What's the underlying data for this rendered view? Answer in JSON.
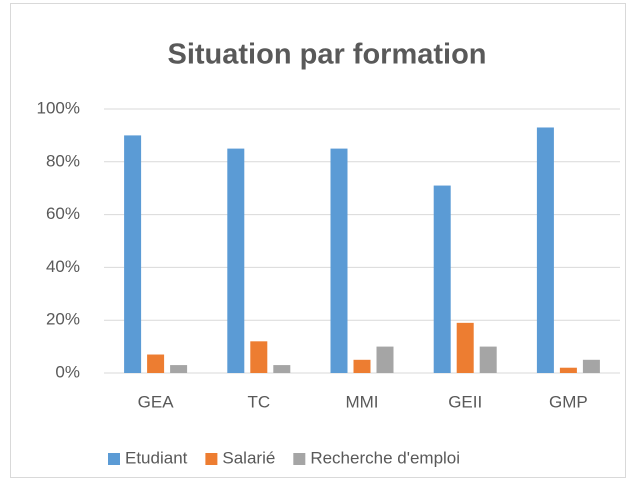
{
  "chart_data": {
    "type": "bar",
    "title": "Situation par formation",
    "categories": [
      "GEA",
      "TC",
      "MMI",
      "GEII",
      "GMP"
    ],
    "series": [
      {
        "name": "Etudiant",
        "color": "#5b9bd5",
        "values": [
          90,
          85,
          85,
          71,
          93
        ]
      },
      {
        "name": "Salarié",
        "color": "#ed7d31",
        "values": [
          7,
          12,
          5,
          19,
          2
        ]
      },
      {
        "name": "Recherche d'emploi",
        "color": "#a5a5a5",
        "values": [
          3,
          3,
          10,
          10,
          5
        ]
      }
    ],
    "ylim": [
      0,
      100
    ],
    "yticks": [
      {
        "value": 0,
        "label": "0%"
      },
      {
        "value": 20,
        "label": "20%"
      },
      {
        "value": 40,
        "label": "40%"
      },
      {
        "value": 60,
        "label": "60%"
      },
      {
        "value": 80,
        "label": "80%"
      },
      {
        "value": 100,
        "label": "100%"
      }
    ],
    "grid": true,
    "legend": "bottom"
  }
}
